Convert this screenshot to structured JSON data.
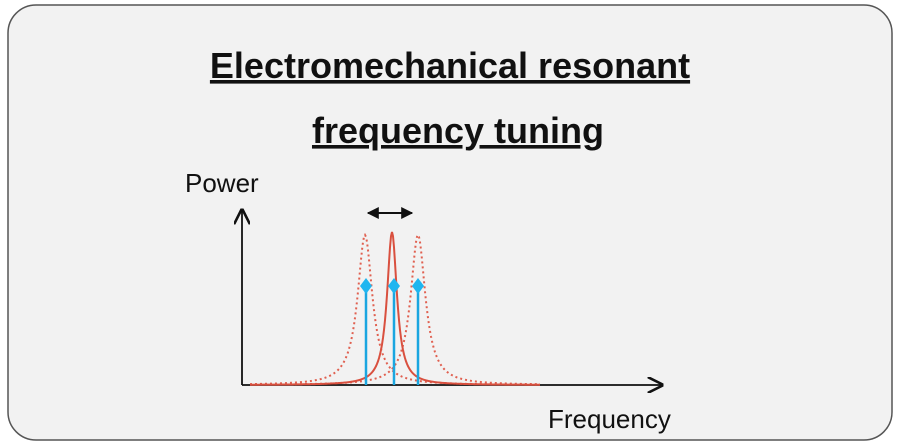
{
  "header": {
    "title_lines": [
      "Electromechanical resonant",
      "frequency tuning"
    ]
  },
  "axes": {
    "y_label": "Power",
    "x_label": "Frequency"
  }
}
